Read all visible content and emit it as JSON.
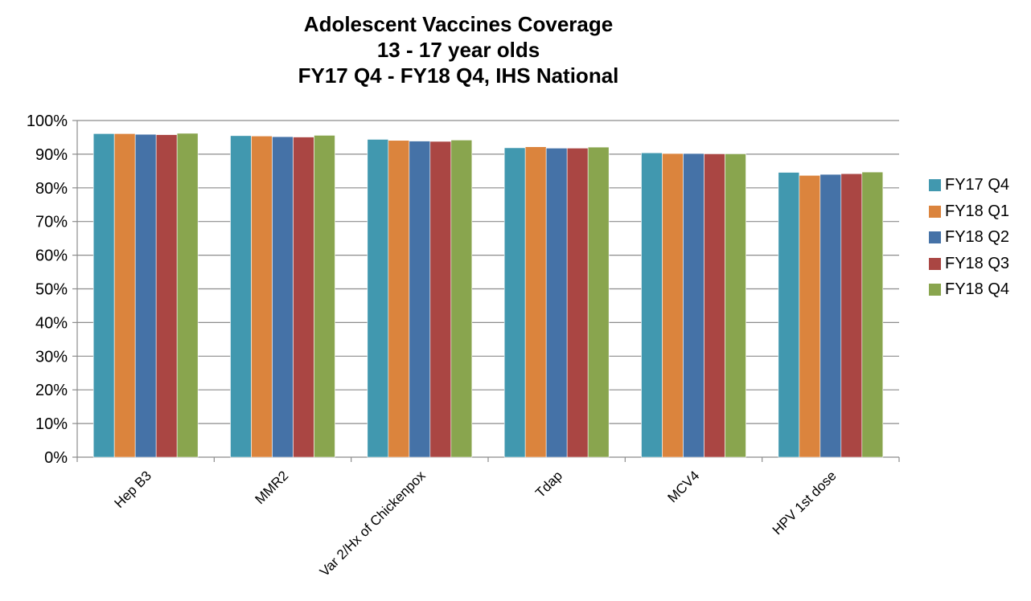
{
  "chart_data": {
    "type": "bar",
    "title": [
      "Adolescent Vaccines Coverage",
      "13 - 17 year olds",
      "FY17 Q4 - FY18 Q4, IHS National"
    ],
    "categories": [
      "Hep B3",
      "MMR2",
      "Var 2/Hx of Chickenpox",
      "Tdap",
      "MCV4",
      "HPV 1st dose"
    ],
    "series": [
      {
        "name": "FY17 Q4",
        "color": "#4198AF",
        "values": [
          96.1,
          95.5,
          94.4,
          91.9,
          90.4,
          84.6
        ]
      },
      {
        "name": "FY18 Q1",
        "color": "#DB843D",
        "values": [
          96.1,
          95.4,
          94.1,
          92.2,
          90.2,
          83.7
        ]
      },
      {
        "name": "FY18 Q2",
        "color": "#4572A7",
        "values": [
          95.9,
          95.2,
          93.9,
          91.8,
          90.2,
          84.0
        ]
      },
      {
        "name": "FY18 Q3",
        "color": "#AA4643",
        "values": [
          95.8,
          95.1,
          93.8,
          91.8,
          90.1,
          84.2
        ]
      },
      {
        "name": "FY18 Q4",
        "color": "#89A54E",
        "values": [
          96.2,
          95.6,
          94.2,
          92.1,
          90.1,
          84.7
        ]
      }
    ],
    "yticks": [
      "0%",
      "10%",
      "20%",
      "30%",
      "40%",
      "50%",
      "60%",
      "70%",
      "80%",
      "90%",
      "100%"
    ],
    "ylim": [
      0,
      100
    ],
    "grid": true,
    "legend": "right"
  }
}
